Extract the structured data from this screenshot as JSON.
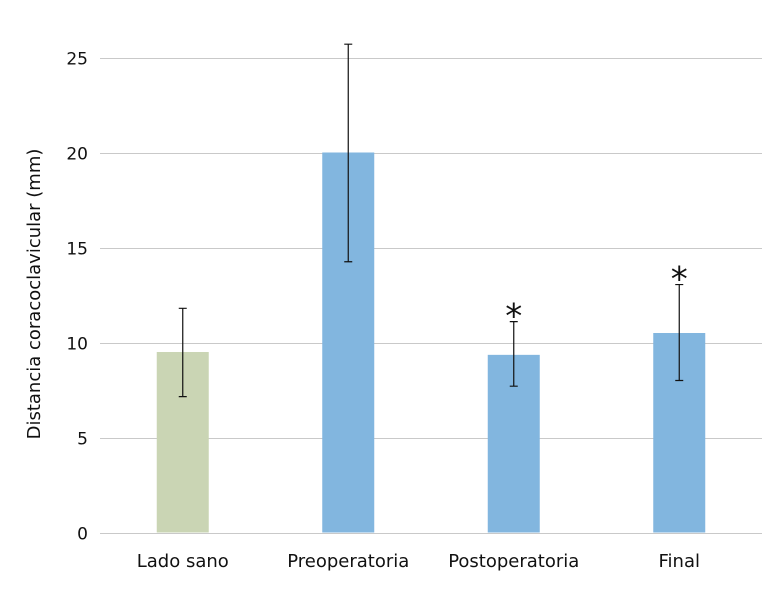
{
  "chart_data": {
    "type": "bar",
    "title": "",
    "xlabel": "",
    "ylabel": "Distancia coracoclavicular (mm)",
    "ylim": [
      0,
      25
    ],
    "yticks": [
      0,
      5,
      10,
      15,
      20,
      25
    ],
    "grid": true,
    "categories": [
      "Lado sano",
      "Preoperatoria",
      "Postoperatoria",
      "Final"
    ],
    "values": [
      9.5,
      20.0,
      9.35,
      10.5
    ],
    "error_upper": [
      11.8,
      25.7,
      11.1,
      13.05
    ],
    "error_lower": [
      7.15,
      14.25,
      7.7,
      8.0
    ],
    "significance": [
      "",
      "",
      "*",
      "*"
    ],
    "bar_colors": [
      "#cad5b4",
      "#82b6df",
      "#82b6df",
      "#82b6df"
    ]
  }
}
